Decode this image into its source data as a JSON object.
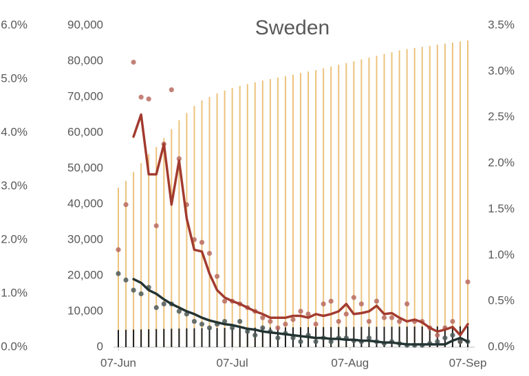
{
  "chart_data": {
    "type": "combo",
    "title": "Sweden",
    "x": [
      "07-Jun",
      "09-Jun",
      "11-Jun",
      "13-Jun",
      "15-Jun",
      "17-Jun",
      "19-Jun",
      "21-Jun",
      "23-Jun",
      "25-Jun",
      "27-Jun",
      "29-Jun",
      "01-Jul",
      "03-Jul",
      "05-Jul",
      "07-Jul",
      "09-Jul",
      "11-Jul",
      "13-Jul",
      "15-Jul",
      "17-Jul",
      "19-Jul",
      "21-Jul",
      "23-Jul",
      "25-Jul",
      "27-Jul",
      "29-Jul",
      "31-Jul",
      "02-Aug",
      "04-Aug",
      "06-Aug",
      "08-Aug",
      "10-Aug",
      "12-Aug",
      "14-Aug",
      "16-Aug",
      "18-Aug",
      "20-Aug",
      "22-Aug",
      "24-Aug",
      "26-Aug",
      "28-Aug",
      "30-Aug",
      "01-Sep",
      "03-Sep",
      "05-Sep",
      "07-Sep"
    ],
    "xlim": [
      "07-Jun",
      "07-Sep"
    ],
    "xticks": [
      "07-Jun",
      "07-Jul",
      "07-Aug",
      "07-Sep"
    ],
    "ylim": [
      0,
      90000
    ],
    "yticks": [
      0,
      {
        "value": 10000,
        "label": "10,000"
      },
      {
        "value": 20000,
        "label": "20,000"
      },
      {
        "value": 30000,
        "label": "30,000"
      },
      {
        "value": 40000,
        "label": "40,000"
      },
      {
        "value": 50000,
        "label": "50,000"
      },
      {
        "value": 60000,
        "label": "60,000"
      },
      {
        "value": 70000,
        "label": "70,000"
      },
      {
        "value": 80000,
        "label": "80,000"
      },
      {
        "value": 90000,
        "label": "90,000"
      }
    ],
    "y2lim": [
      0,
      3.5
    ],
    "y2ticks": [
      {
        "value": 0,
        "label": "0.0%"
      },
      {
        "value": 0.5,
        "label": "0.5%"
      },
      {
        "value": 1,
        "label": "1.0%"
      },
      {
        "value": 1.5,
        "label": "1.5%"
      },
      {
        "value": 2,
        "label": "2.0%"
      },
      {
        "value": 2.5,
        "label": "2.5%"
      },
      {
        "value": 3,
        "label": "3.0%"
      },
      {
        "value": 3.5,
        "label": "3.5%"
      }
    ],
    "y3lim": [
      0,
      6
    ],
    "y3ticks": [
      {
        "value": 0,
        "label": "0.0%"
      },
      {
        "value": 1,
        "label": "1.0%"
      },
      {
        "value": 2,
        "label": "2.0%"
      },
      {
        "value": 3,
        "label": "3.0%"
      },
      {
        "value": 4,
        "label": "4.0%"
      },
      {
        "value": 5,
        "label": "5.0%"
      },
      {
        "value": 6,
        "label": "6.0%"
      }
    ],
    "series": [
      {
        "kind": "bars",
        "axis": "y",
        "color": "#ecc27c",
        "values": [
          44600,
          46500,
          49000,
          51500,
          54000,
          56000,
          58500,
          61000,
          63500,
          65500,
          67500,
          69000,
          70000,
          71000,
          71800,
          72500,
          73100,
          73600,
          74100,
          74600,
          75000,
          75400,
          75800,
          76200,
          76700,
          77100,
          77500,
          78000,
          78500,
          79000,
          79500,
          80000,
          80500,
          81000,
          81500,
          82000,
          82500,
          83000,
          83400,
          83700,
          84000,
          84300,
          84600,
          84900,
          85200,
          85500,
          85800
        ]
      },
      {
        "kind": "bars",
        "axis": "y",
        "color": "#1e1e1e",
        "values": [
          4800,
          4850,
          4900,
          4950,
          5000,
          5050,
          5100,
          5150,
          5200,
          5250,
          5280,
          5310,
          5330,
          5350,
          5370,
          5390,
          5410,
          5430,
          5450,
          5470,
          5490,
          5510,
          5530,
          5550,
          5570,
          5590,
          5600,
          5610,
          5620,
          5630,
          5640,
          5650,
          5660,
          5670,
          5680,
          5690,
          5700,
          5710,
          5720,
          5740,
          5760,
          5780,
          5790,
          5800,
          5810,
          5830,
          5850
        ]
      },
      {
        "kind": "dots",
        "axis": "y2",
        "color": "#b86b60",
        "values": [
          1.06,
          1.55,
          3.1,
          2.72,
          2.7,
          1.32,
          2.21,
          2.8,
          2.05,
          1.55,
          1.17,
          1.14,
          1.02,
          0.77,
          0.5,
          0.5,
          0.47,
          0.43,
          0.39,
          0.32,
          0.28,
          0.21,
          0.25,
          0.3,
          0.39,
          0.36,
          0.25,
          0.47,
          0.5,
          0.28,
          0.36,
          0.54,
          0.47,
          0.28,
          0.5,
          0.32,
          0.32,
          0.28,
          0.47,
          0.28,
          0.28,
          0.21,
          0.13,
          0.21,
          0.28,
          0.06,
          0.71
        ]
      },
      {
        "kind": "line",
        "axis": "y2",
        "color": "#a23b2f",
        "values": [
          null,
          null,
          2.29,
          2.53,
          1.88,
          1.88,
          2.21,
          1.55,
          2.03,
          1.4,
          1.06,
          1.04,
          0.8,
          0.62,
          0.54,
          0.5,
          0.47,
          0.43,
          0.39,
          0.36,
          0.32,
          0.32,
          0.32,
          0.34,
          0.34,
          0.32,
          0.36,
          0.34,
          0.36,
          0.39,
          0.47,
          0.36,
          0.37,
          0.39,
          0.45,
          0.36,
          0.37,
          0.32,
          0.28,
          0.3,
          0.27,
          0.21,
          0.17,
          0.19,
          0.22,
          0.13,
          0.25
        ]
      },
      {
        "kind": "dots",
        "axis": "y2",
        "color": "#4d5b59",
        "values": [
          0.8,
          0.73,
          0.62,
          0.58,
          0.65,
          0.43,
          0.47,
          0.47,
          0.39,
          0.36,
          0.28,
          0.25,
          0.21,
          0.25,
          0.28,
          0.21,
          0.28,
          0.17,
          0.13,
          0.21,
          0.17,
          0.1,
          0.15,
          0.1,
          0.06,
          0.13,
          0.06,
          0.1,
          0.06,
          0.1,
          0.1,
          0.07,
          0.06,
          0.1,
          0.06,
          0.04,
          0.06,
          0.04,
          0.02,
          0.02,
          0.02,
          0.04,
          0.06,
          0.1,
          0.13,
          0.06,
          0.06
        ]
      },
      {
        "kind": "line",
        "axis": "y2",
        "color": "#233432",
        "values": [
          null,
          null,
          0.74,
          0.7,
          0.62,
          0.58,
          0.52,
          0.47,
          0.43,
          0.39,
          0.36,
          0.32,
          0.29,
          0.27,
          0.25,
          0.24,
          0.22,
          0.2,
          0.19,
          0.17,
          0.16,
          0.15,
          0.14,
          0.13,
          0.12,
          0.11,
          0.1,
          0.1,
          0.09,
          0.09,
          0.08,
          0.08,
          0.07,
          0.07,
          0.06,
          0.05,
          0.05,
          0.04,
          0.03,
          0.03,
          0.03,
          0.03,
          0.03,
          0.03,
          0.07,
          0.1,
          0.06
        ]
      }
    ]
  }
}
